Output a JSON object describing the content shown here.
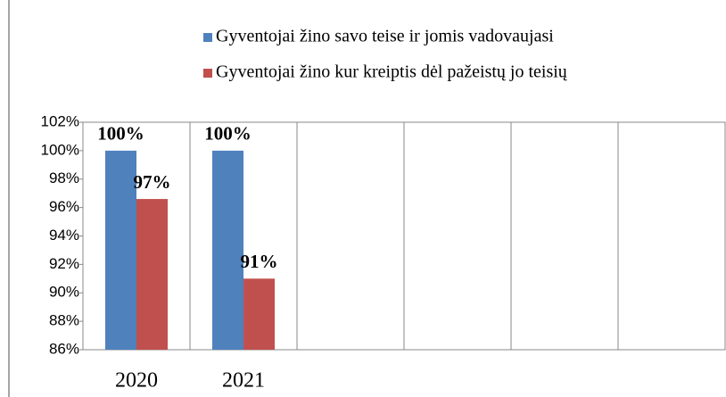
{
  "chart_data": {
    "type": "bar",
    "categories": [
      "2020",
      "2021",
      null,
      null,
      null,
      null
    ],
    "series": [
      {
        "name": "Gyventojai žino savo teise ir jomis vadovaujasi",
        "color": "#4f81bd",
        "values": [
          100,
          100,
          null,
          null,
          null,
          null
        ],
        "value_labels": [
          "100%",
          "100%",
          null,
          null,
          null,
          null
        ]
      },
      {
        "name": "Gyventojai žino kur kreiptis dėl pažeistų jo teisių",
        "color": "#c0504d",
        "values": [
          96.6,
          91,
          null,
          null,
          null,
          null
        ],
        "value_labels": [
          "97%",
          "91%",
          null,
          null,
          null,
          null
        ]
      }
    ],
    "ylim": [
      86,
      102
    ],
    "yticks": [
      {
        "value": 86,
        "label": "86%"
      },
      {
        "value": 88,
        "label": "88%"
      },
      {
        "value": 90,
        "label": "90%"
      },
      {
        "value": 92,
        "label": "92%"
      },
      {
        "value": 94,
        "label": "94%"
      },
      {
        "value": 96,
        "label": "96%"
      },
      {
        "value": 98,
        "label": "98%"
      },
      {
        "value": 100,
        "label": "100%"
      },
      {
        "value": 102,
        "label": "102%"
      }
    ],
    "grid": false,
    "legend": "top"
  }
}
